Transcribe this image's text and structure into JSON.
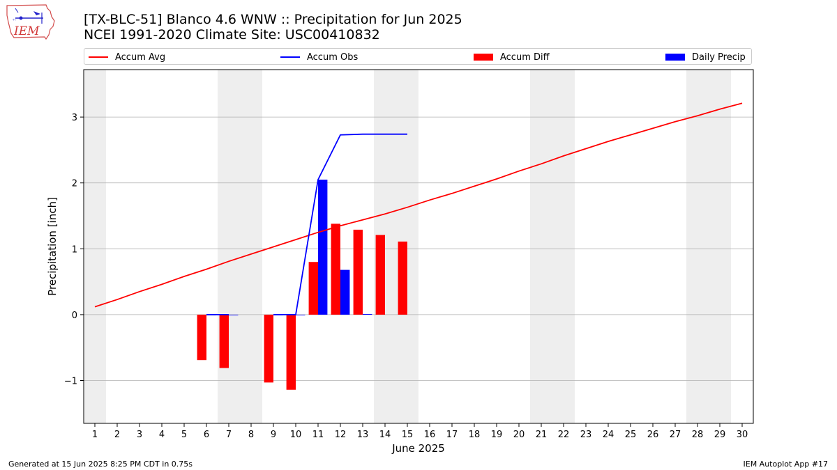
{
  "header": {
    "title_line1": "[TX-BLC-51] Blanco 4.6 WNW :: Precipitation for Jun 2025",
    "title_line2": "NCEI 1991-2020 Climate Site: USC00410832"
  },
  "logo": {
    "text": "IEM"
  },
  "legend": {
    "items": [
      {
        "label": "Accum Avg",
        "color": "#ff0000",
        "kind": "line"
      },
      {
        "label": "Accum Obs",
        "color": "#0000ff",
        "kind": "line"
      },
      {
        "label": "Accum Diff",
        "color": "#ff0000",
        "kind": "box"
      },
      {
        "label": "Daily Precip",
        "color": "#0000ff",
        "kind": "box"
      }
    ]
  },
  "footer": {
    "left": "Generated at 15 Jun 2025 8:25 PM CDT in 0.75s",
    "right": "IEM Autoplot App #17"
  },
  "chart_data": {
    "type": "bar",
    "xlabel": "June 2025",
    "ylabel": "Precipitation [inch]",
    "xlim": [
      0.5,
      30.5
    ],
    "ylim": [
      -1.65,
      3.72
    ],
    "x_ticks": [
      1,
      2,
      3,
      4,
      5,
      6,
      7,
      8,
      9,
      10,
      11,
      12,
      13,
      14,
      15,
      16,
      17,
      18,
      19,
      20,
      21,
      22,
      23,
      24,
      25,
      26,
      27,
      28,
      29,
      30
    ],
    "y_ticks": [
      -1,
      0,
      1,
      2,
      3
    ],
    "y_tick_labels": [
      "−1",
      "0",
      "1",
      "2",
      "3"
    ],
    "grid": "horizontal",
    "weekend_shading": [
      [
        0.5,
        1.5
      ],
      [
        6.5,
        8.5
      ],
      [
        13.5,
        15.5
      ],
      [
        20.5,
        22.5
      ],
      [
        27.5,
        29.5
      ]
    ],
    "series": [
      {
        "name": "Accum Avg",
        "type": "line",
        "color": "#ff0000",
        "x": [
          1,
          2,
          3,
          4,
          5,
          6,
          7,
          8,
          9,
          10,
          11,
          12,
          13,
          14,
          15,
          16,
          17,
          18,
          19,
          20,
          21,
          22,
          23,
          24,
          25,
          26,
          27,
          28,
          29,
          30
        ],
        "values": [
          0.12,
          0.23,
          0.35,
          0.46,
          0.58,
          0.69,
          0.81,
          0.92,
          1.03,
          1.14,
          1.25,
          1.35,
          1.44,
          1.53,
          1.63,
          1.74,
          1.84,
          1.95,
          2.06,
          2.18,
          2.29,
          2.41,
          2.52,
          2.63,
          2.73,
          2.83,
          2.93,
          3.02,
          3.12,
          3.21
        ]
      },
      {
        "name": "Accum Obs",
        "type": "line",
        "color": "#0000ff",
        "x": [
          6,
          7,
          8,
          9,
          10,
          11,
          12,
          13,
          14,
          15
        ],
        "values": [
          0.0,
          0.0,
          null,
          0.0,
          0.0,
          2.05,
          2.73,
          2.74,
          2.74,
          2.74
        ]
      },
      {
        "name": "Accum Diff",
        "type": "bar",
        "color": "#ff0000",
        "x": [
          6,
          7,
          9,
          10,
          11,
          12,
          13,
          14,
          15
        ],
        "values": [
          -0.69,
          -0.81,
          -1.03,
          -1.14,
          0.8,
          1.38,
          1.29,
          1.21,
          1.11
        ]
      },
      {
        "name": "Daily Precip",
        "type": "bar",
        "color": "#0000ff",
        "x": [
          6,
          7,
          9,
          10,
          11,
          12,
          13
        ],
        "values": [
          0.0,
          0.0,
          0.0,
          0.0,
          2.05,
          0.68,
          0.01
        ]
      }
    ]
  }
}
